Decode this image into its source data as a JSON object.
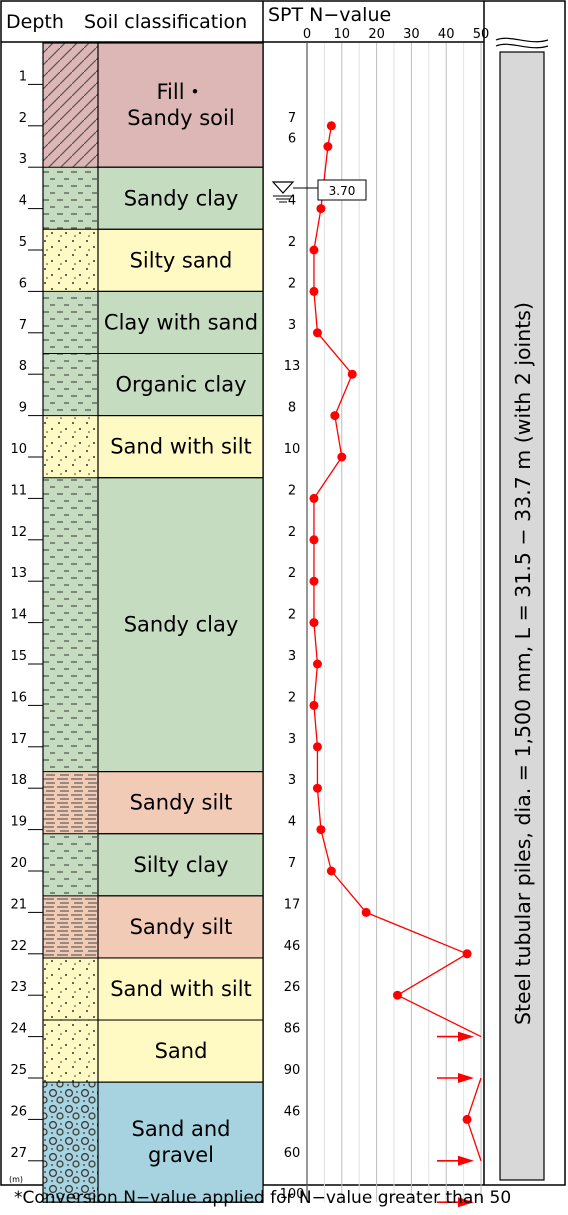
{
  "headers": {
    "depth": "Depth",
    "soil_classification": "Soil classification",
    "spt": "SPT N−value"
  },
  "depth_unit": "(m)",
  "depth_ticks": [
    1,
    2,
    3,
    4,
    5,
    6,
    7,
    8,
    9,
    10,
    11,
    12,
    13,
    14,
    15,
    16,
    17,
    18,
    19,
    20,
    21,
    22,
    23,
    24,
    25,
    26,
    27
  ],
  "groundwater_level": "3.70",
  "pile_label": "Steel tubular piles, dia. = 1,500 mm, L = 31.5 − 33.7 m (with 2 joints)",
  "footnote": "*Conversion N−value applied for N−value greater than 50",
  "colors": {
    "fill": "#dcb7b5",
    "clay": "#c6dcc0",
    "sand": "#fff9c4",
    "silt": "#f2cbb7",
    "gravel": "#a6d3df",
    "spt_line": "#ff0000",
    "pile": "#d8d8d8"
  },
  "layers": [
    {
      "label": "Fill・ Sandy soil",
      "lines": [
        "Fill・",
        "Sandy soil"
      ],
      "top_depth": 0.0,
      "bottom_depth": 3.0,
      "type": "fill"
    },
    {
      "label": "Sandy clay",
      "lines": [
        "Sandy clay"
      ],
      "top_depth": 3.0,
      "bottom_depth": 4.5,
      "type": "clay"
    },
    {
      "label": "Silty sand",
      "lines": [
        "Silty sand"
      ],
      "top_depth": 4.5,
      "bottom_depth": 6.0,
      "type": "sand"
    },
    {
      "label": "Clay with sand",
      "lines": [
        "Clay with sand"
      ],
      "top_depth": 6.0,
      "bottom_depth": 7.5,
      "type": "clay"
    },
    {
      "label": "Organic clay",
      "lines": [
        "Organic clay"
      ],
      "top_depth": 7.5,
      "bottom_depth": 9.0,
      "type": "clay"
    },
    {
      "label": "Sand with silt",
      "lines": [
        "Sand with silt"
      ],
      "top_depth": 9.0,
      "bottom_depth": 10.5,
      "type": "sand"
    },
    {
      "label": "Sandy clay",
      "lines": [
        "Sandy clay"
      ],
      "top_depth": 10.5,
      "bottom_depth": 17.6,
      "type": "clay"
    },
    {
      "label": "Sandy silt",
      "lines": [
        "Sandy silt"
      ],
      "top_depth": 17.6,
      "bottom_depth": 19.1,
      "type": "silt"
    },
    {
      "label": "Silty clay",
      "lines": [
        "Silty clay"
      ],
      "top_depth": 19.1,
      "bottom_depth": 20.6,
      "type": "clay"
    },
    {
      "label": "Sandy silt",
      "lines": [
        "Sandy silt"
      ],
      "top_depth": 20.6,
      "bottom_depth": 22.1,
      "type": "silt"
    },
    {
      "label": "Sand with silt",
      "lines": [
        "Sand with silt"
      ],
      "top_depth": 22.1,
      "bottom_depth": 23.6,
      "type": "sand"
    },
    {
      "label": "Sand",
      "lines": [
        "Sand"
      ],
      "top_depth": 23.6,
      "bottom_depth": 25.1,
      "type": "sand"
    },
    {
      "label": "Sand and gravel",
      "lines": [
        "Sand and",
        "gravel"
      ],
      "top_depth": 25.1,
      "bottom_depth": 28.0,
      "type": "gravel"
    }
  ],
  "chart_data": {
    "type": "line",
    "title": "SPT N−value",
    "xlabel": "SPT N−value",
    "ylabel": "Depth (m)",
    "xlim": [
      0,
      50
    ],
    "x_ticks": [
      0,
      10,
      20,
      30,
      40,
      50
    ],
    "ylim": [
      0,
      28
    ],
    "series": [
      {
        "points": [
          {
            "depth": 2.0,
            "n_value": 7,
            "label": "7"
          },
          {
            "depth": 2.5,
            "n_value": 6,
            "label": "6"
          },
          {
            "depth": 4.0,
            "n_value": 4,
            "label": "4"
          },
          {
            "depth": 5.0,
            "n_value": 2,
            "label": "2"
          },
          {
            "depth": 6.0,
            "n_value": 2,
            "label": "2"
          },
          {
            "depth": 7.0,
            "n_value": 3,
            "label": "3"
          },
          {
            "depth": 8.0,
            "n_value": 13,
            "label": "13"
          },
          {
            "depth": 9.0,
            "n_value": 8,
            "label": "8"
          },
          {
            "depth": 10.0,
            "n_value": 10,
            "label": "10"
          },
          {
            "depth": 11.0,
            "n_value": 2,
            "label": "2"
          },
          {
            "depth": 12.0,
            "n_value": 2,
            "label": "2"
          },
          {
            "depth": 13.0,
            "n_value": 2,
            "label": "2"
          },
          {
            "depth": 14.0,
            "n_value": 2,
            "label": "2"
          },
          {
            "depth": 15.0,
            "n_value": 3,
            "label": "3"
          },
          {
            "depth": 16.0,
            "n_value": 2,
            "label": "2"
          },
          {
            "depth": 17.0,
            "n_value": 3,
            "label": "3"
          },
          {
            "depth": 18.0,
            "n_value": 3,
            "label": "3"
          },
          {
            "depth": 19.0,
            "n_value": 4,
            "label": "4"
          },
          {
            "depth": 20.0,
            "n_value": 7,
            "label": "7"
          },
          {
            "depth": 21.0,
            "n_value": 17,
            "label": "17"
          },
          {
            "depth": 22.0,
            "n_value": 46,
            "label": "46"
          },
          {
            "depth": 23.0,
            "n_value": 26,
            "label": "26"
          },
          {
            "depth": 24.0,
            "n_value": 86,
            "label": "86",
            "offscale": true
          },
          {
            "depth": 25.0,
            "n_value": 90,
            "label": "90",
            "offscale": true
          },
          {
            "depth": 26.0,
            "n_value": 46,
            "label": "46"
          },
          {
            "depth": 27.0,
            "n_value": 60,
            "label": "60",
            "offscale": true
          },
          {
            "depth": 28.0,
            "n_value": 100,
            "label": "100",
            "offscale": true
          }
        ]
      }
    ],
    "grid": true
  }
}
